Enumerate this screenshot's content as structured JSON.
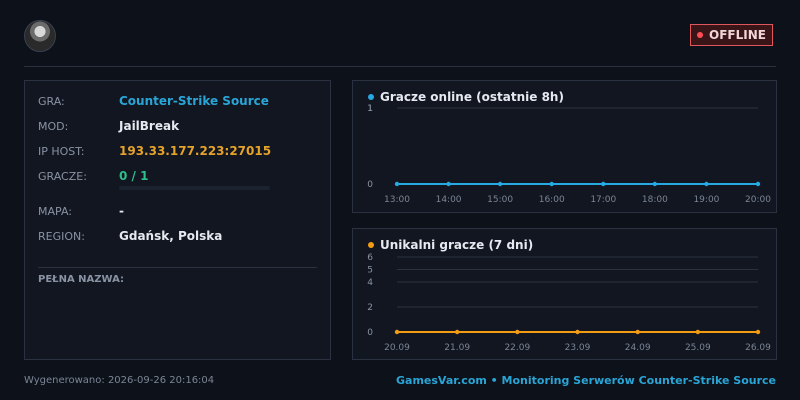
{
  "status": {
    "label": "OFFLINE",
    "color": "#e0565d"
  },
  "avatar_icon": "player-avatar",
  "info": {
    "game_label": "GRA:",
    "game_value": "Counter-Strike Source",
    "mod_label": "MOD:",
    "mod_value": "JailBreak",
    "ip_label": "IP HOST:",
    "ip_value": "193.33.177.223:27015",
    "players_label": "GRACZE:",
    "players_value": "0 / 1",
    "players_fill_fraction": 0,
    "map_label": "MAPA:",
    "map_value": "-",
    "region_label": "REGION:",
    "region_value": "Gdańsk, Polska",
    "full_name_label": "PEŁNA NAZWA:"
  },
  "chart_data": [
    {
      "type": "line",
      "title": "Gracze online (ostatnie 8h)",
      "color": "#27a9e1",
      "categories": [
        "13:00",
        "14:00",
        "15:00",
        "16:00",
        "17:00",
        "18:00",
        "19:00",
        "20:00"
      ],
      "series": [
        {
          "values": [
            0,
            0,
            0,
            0,
            0,
            0,
            0,
            0
          ]
        }
      ],
      "y_ticks": [
        "0",
        "1",
        "1"
      ],
      "ylim": [
        0,
        1
      ],
      "grid": true
    },
    {
      "type": "line",
      "title": "Unikalni gracze (7 dni)",
      "color": "#f39c12",
      "categories": [
        "20.09",
        "21.09",
        "22.09",
        "23.09",
        "24.09",
        "25.09",
        "26.09"
      ],
      "series": [
        {
          "values": [
            0,
            0,
            0,
            0,
            0,
            0,
            0
          ]
        }
      ],
      "y_ticks": [
        "0",
        "2",
        "4",
        "5",
        "6"
      ],
      "ylim": [
        0,
        6
      ],
      "grid": true
    }
  ],
  "footer": {
    "generated": "Wygenerowano: 2026-09-26 20:16:04",
    "brand": "GamesVar.com • Monitoring Serwerów Counter-Strike Source"
  }
}
